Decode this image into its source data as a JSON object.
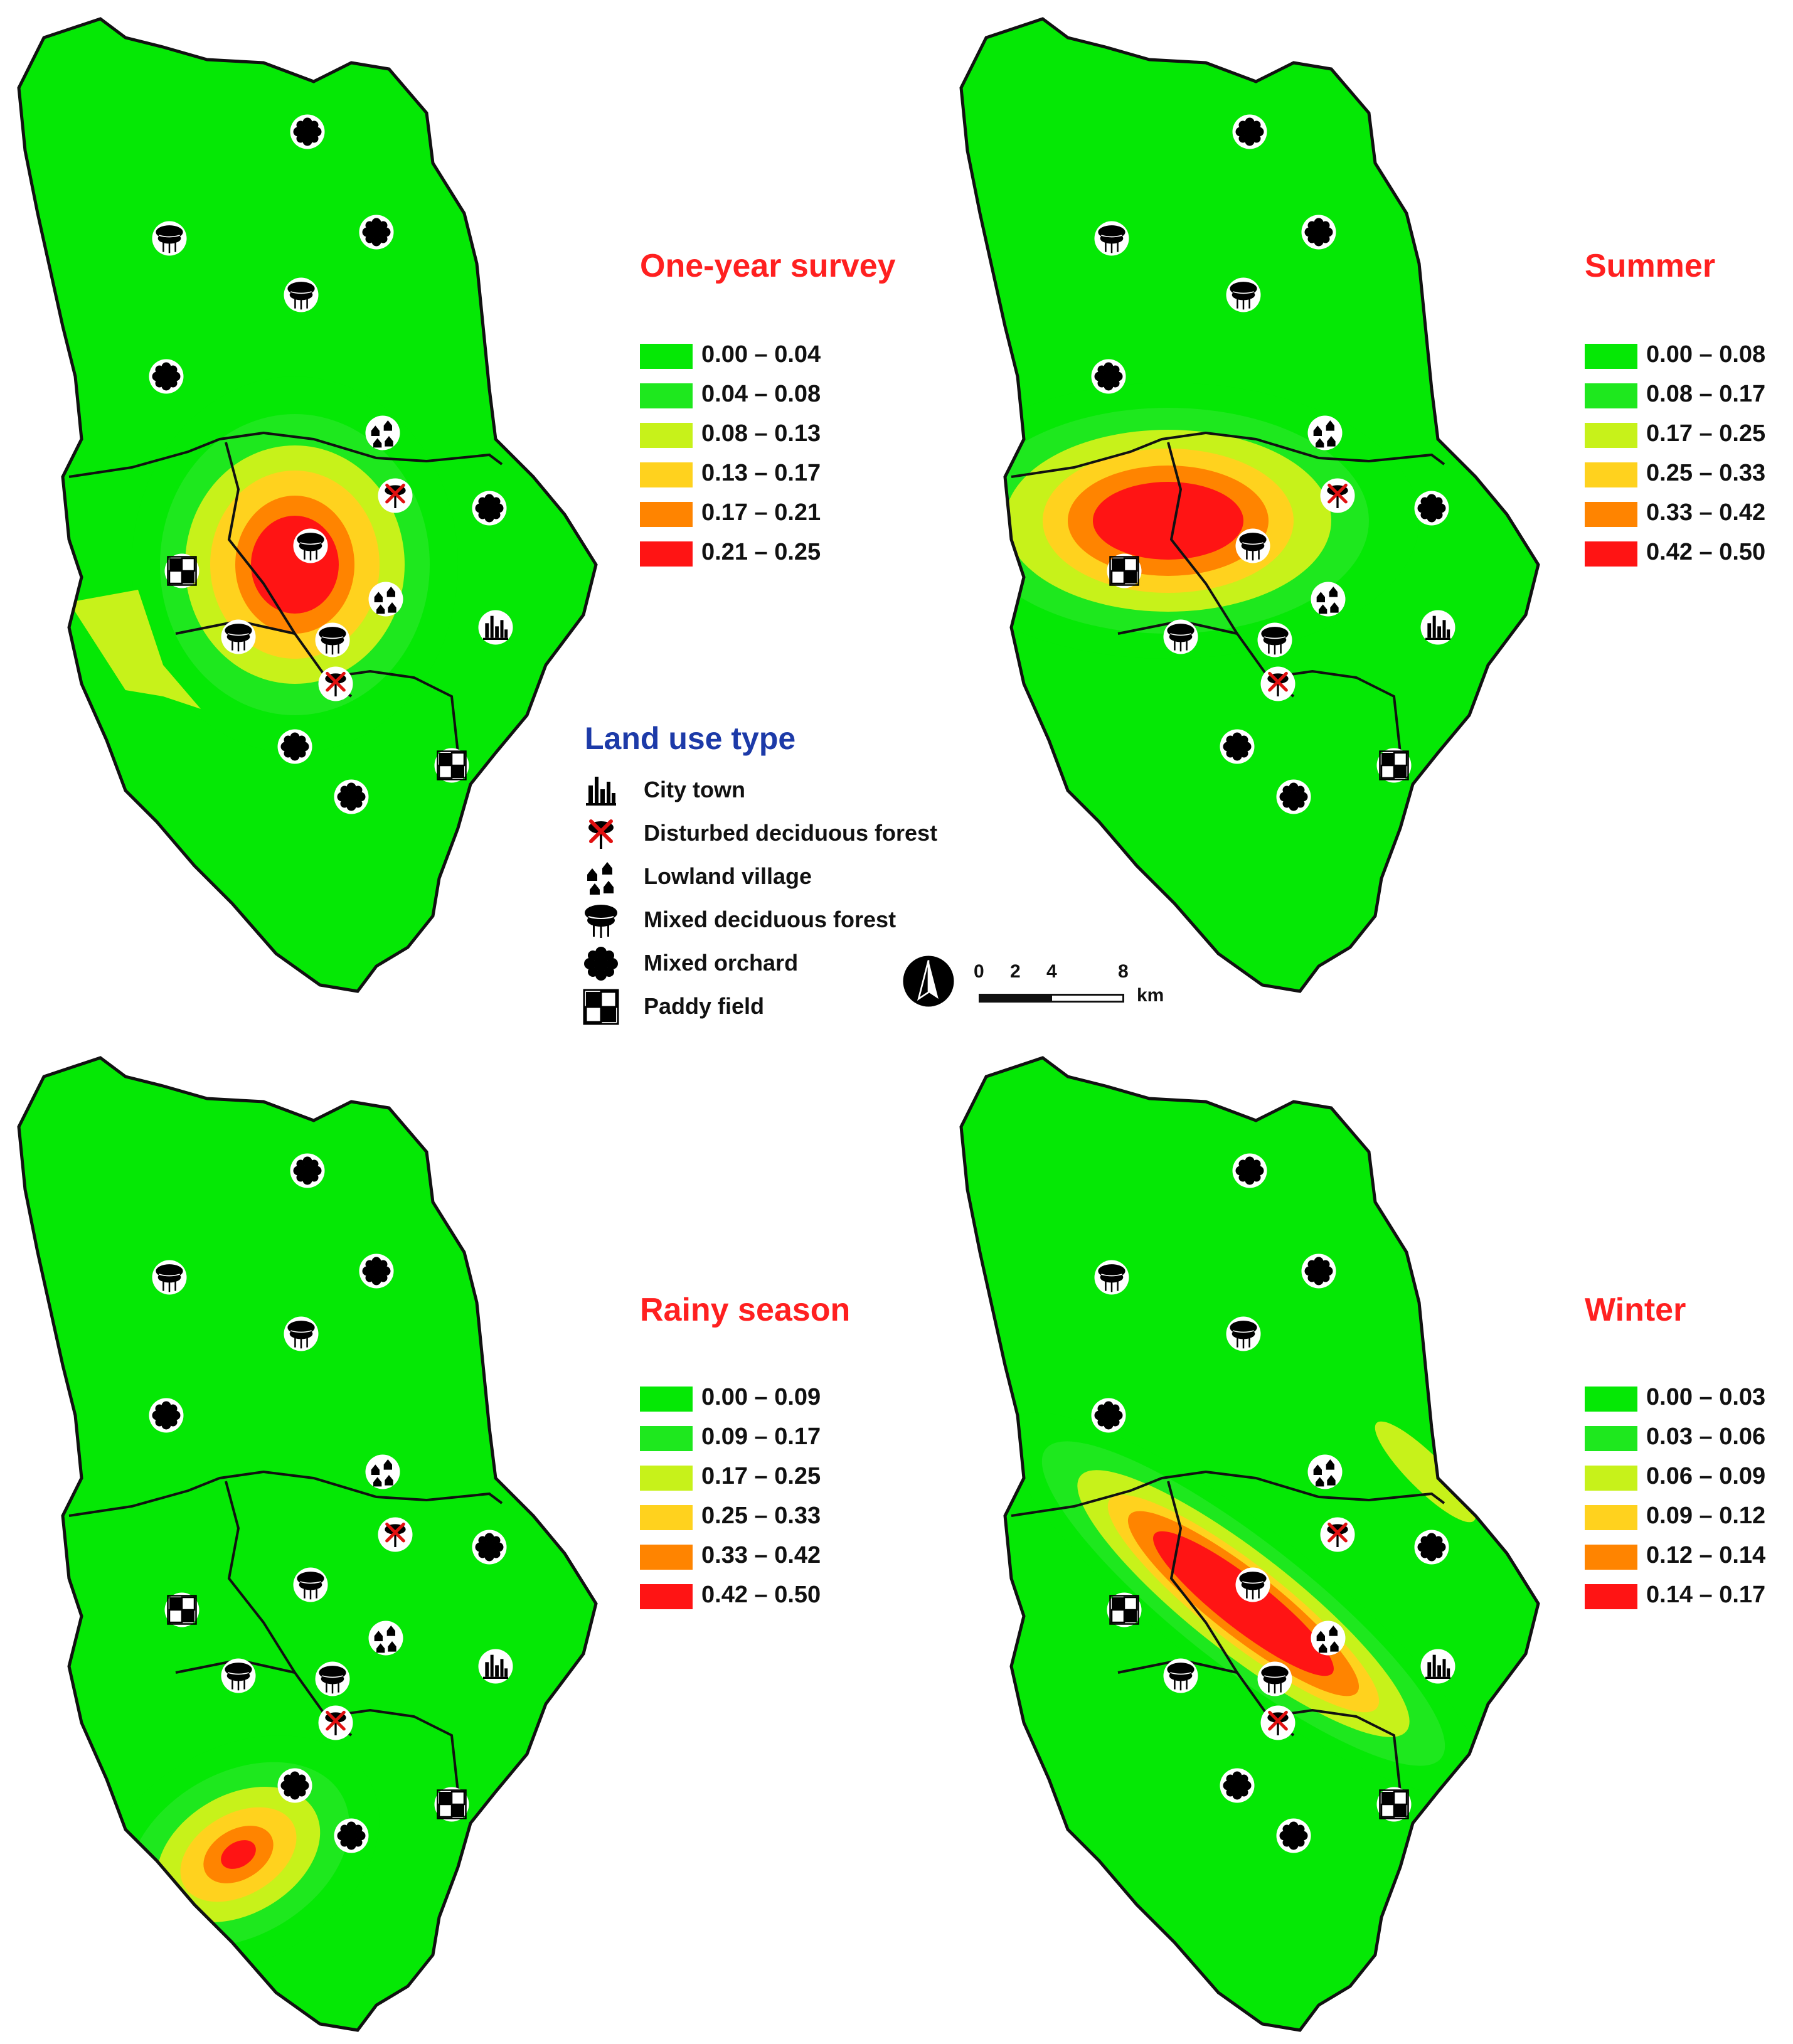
{
  "colors": {
    "base": "#05e805",
    "classes": [
      "#05e805",
      "#1ee81e",
      "#c7f21a",
      "#ffd21e",
      "#ff8400",
      "#ff1414"
    ]
  },
  "panels": [
    {
      "id": "one-year",
      "title": "One-year survey",
      "ranges": [
        "0.00 – 0.04",
        "0.04 – 0.08",
        "0.08 – 0.13",
        "0.13 – 0.17",
        "0.17 – 0.21",
        "0.21 – 0.25"
      ]
    },
    {
      "id": "summer",
      "title": "Summer",
      "ranges": [
        "0.00 – 0.08",
        "0.08 – 0.17",
        "0.17 – 0.25",
        "0.25 – 0.33",
        "0.33 – 0.42",
        "0.42 – 0.50"
      ]
    },
    {
      "id": "rainy",
      "title": "Rainy season",
      "ranges": [
        "0.00 – 0.09",
        "0.09 – 0.17",
        "0.17 – 0.25",
        "0.25 – 0.33",
        "0.33 – 0.42",
        "0.42 – 0.50"
      ]
    },
    {
      "id": "winter",
      "title": "Winter",
      "ranges": [
        "0.00 – 0.03",
        "0.03 – 0.06",
        "0.06 – 0.09",
        "0.09 – 0.12",
        "0.12 – 0.14",
        "0.14 – 0.17"
      ]
    }
  ],
  "land_use": {
    "title": "Land use type",
    "types": [
      {
        "label": "City town",
        "icon": "city-town-icon"
      },
      {
        "label": "Disturbed deciduous forest",
        "icon": "disturbed-forest-icon"
      },
      {
        "label": "Lowland village",
        "icon": "lowland-village-icon"
      },
      {
        "label": "Mixed deciduous forest",
        "icon": "mixed-forest-icon"
      },
      {
        "label": "Mixed orchard",
        "icon": "mixed-orchard-icon"
      },
      {
        "label": "Paddy field",
        "icon": "paddy-field-icon"
      }
    ]
  },
  "scale": {
    "ticks": [
      "0",
      "2",
      "4",
      "8"
    ],
    "unit": "km"
  }
}
